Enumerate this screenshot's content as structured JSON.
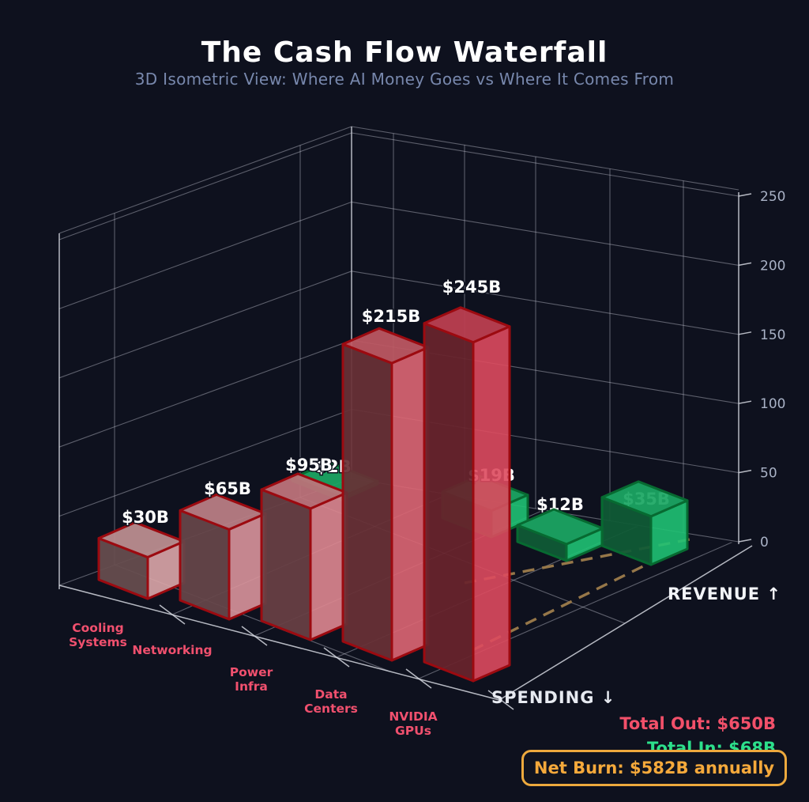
{
  "header": {
    "title": "The Cash Flow Waterfall",
    "subtitle": "3D Isometric View: Where AI Money Goes vs Where It Comes From"
  },
  "axis_labels": {
    "spending": "SPENDING ↓",
    "revenue": "REVENUE ↑"
  },
  "totals": {
    "out_label": "Total Out: $650B",
    "in_label": "Total In: $68B",
    "net_label": "Net Burn: $582B annually"
  },
  "colors": {
    "background": "#0e111e",
    "grid": "#c7cbd7",
    "spine": "#d4d7df",
    "dashed_line": "#967749",
    "tick_label": "#a9b2c6",
    "category_label": "#f0506e",
    "value_label": "#ffffff",
    "spending_edge": "#9c0a10",
    "revenue_edge": "#076a31",
    "revenue_fill": "#1fc273",
    "total_out": "#f2506a",
    "total_in": "#2ce08b",
    "net_burn": "#f5a93b",
    "box_border": "#eda93d"
  },
  "chart_data": {
    "type": "bar",
    "projection": "3d-isometric",
    "title": "The Cash Flow Waterfall",
    "z_axis_ticks": [
      0,
      50,
      100,
      150,
      200,
      250
    ],
    "grid": true,
    "series": [
      {
        "name": "Spending",
        "axis_label": "SPENDING ↓",
        "categories": [
          "Cooling Systems",
          "Networking",
          "Power Infra",
          "Data Centers",
          "NVIDIA GPUs"
        ],
        "values": [
          30,
          65,
          95,
          215,
          245
        ],
        "bar_labels": [
          "$30B",
          "$65B",
          "$95B",
          "$215B",
          "$245B"
        ],
        "color_ramp": [
          "#dca6a9",
          "#d9949b",
          "#de8790",
          "#dd6673",
          "#dd4a5e"
        ],
        "total": 650
      },
      {
        "name": "Revenue",
        "axis_label": "REVENUE ↑",
        "values": [
          2,
          19,
          12,
          35
        ],
        "bar_labels": [
          "$2B",
          "$19B",
          "$12B",
          "$35B"
        ],
        "total": 68
      }
    ]
  }
}
